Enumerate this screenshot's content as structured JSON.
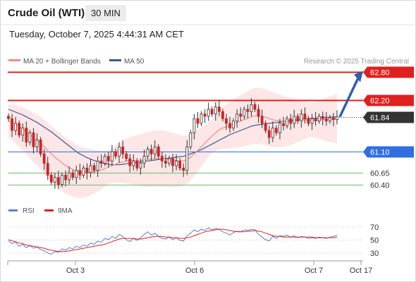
{
  "header": {
    "instrument": "Crude Oil (WTI)",
    "timeframe": "30 MIN",
    "datetime": "Tuesday, October 7, 2025 4:44:31 AM CET"
  },
  "legend": {
    "ma20_label": "MA 20 + Bollinger Bands",
    "ma50_label": "MA 50",
    "ma20_color": "#f28b82",
    "ma50_color": "#3a5a98",
    "credit": "Research © 2025 Trading Central"
  },
  "rsi_legend": {
    "rsi_label": "RSI",
    "ma9_label": "9MA",
    "rsi_color": "#5b7fd4",
    "ma9_color": "#e02020"
  },
  "chart_data": [
    {
      "type": "candlestick",
      "price_ylim": [
        60.2,
        62.9
      ],
      "x_axis_labels": [
        "Oct 3",
        "Oct 6",
        "Oct 7",
        "Oct 17"
      ],
      "price_levels": [
        {
          "value": "62.80",
          "role": "target",
          "color": "#e02020",
          "style": "solid"
        },
        {
          "value": "62.20",
          "role": "resistance",
          "color": "#e02020",
          "style": "solid"
        },
        {
          "value": "61.84",
          "role": "last price",
          "color": "#333333",
          "style": "dotted"
        },
        {
          "value": "61.10",
          "role": "pivot",
          "color": "#2f6fe0",
          "style": "solid"
        },
        {
          "value": "60.65",
          "role": "support",
          "color": "#6cbf6c",
          "style": "solid"
        },
        {
          "value": "60.40",
          "role": "support",
          "color": "#6cbf6c",
          "style": "solid"
        }
      ],
      "close_series": [
        61.8,
        61.55,
        61.7,
        61.45,
        61.6,
        61.3,
        61.5,
        61.2,
        61.35,
        61.05,
        60.85,
        60.6,
        60.45,
        60.55,
        60.4,
        60.6,
        60.5,
        60.65,
        60.55,
        60.7,
        60.6,
        60.75,
        60.65,
        60.8,
        60.7,
        60.9,
        60.85,
        61.0,
        60.9,
        61.1,
        61.0,
        61.2,
        61.05,
        60.95,
        60.8,
        60.9,
        60.75,
        60.85,
        61.0,
        61.15,
        61.05,
        61.2,
        61.0,
        60.9,
        60.85,
        60.95,
        60.8,
        60.9,
        60.75,
        60.7,
        61.2,
        61.5,
        61.8,
        61.7,
        61.9,
        61.85,
        62.0,
        61.9,
        62.05,
        61.95,
        61.8,
        61.7,
        61.6,
        61.75,
        61.9,
        61.85,
        62.0,
        61.95,
        62.1,
        62.0,
        61.85,
        61.7,
        61.55,
        61.4,
        61.6,
        61.5,
        61.7,
        61.65,
        61.8,
        61.7,
        61.85,
        61.75,
        61.9,
        61.8,
        61.7,
        61.8,
        61.75,
        61.85,
        61.8,
        61.75,
        61.82,
        61.78,
        61.84
      ],
      "ma20_series": [
        61.75,
        61.72,
        61.68,
        61.64,
        61.58,
        61.52,
        61.46,
        61.4,
        61.34,
        61.28,
        61.2,
        61.12,
        61.05,
        60.98,
        60.92,
        60.86,
        60.8,
        60.76,
        60.72,
        60.68,
        60.66,
        60.65,
        60.65,
        60.66,
        60.67,
        60.69,
        60.71,
        60.74,
        60.77,
        60.8,
        60.83,
        60.86,
        60.88,
        60.9,
        60.91,
        60.91,
        60.91,
        60.91,
        60.92,
        60.93,
        60.94,
        60.95,
        60.95,
        60.95,
        60.94,
        60.93,
        60.92,
        60.91,
        60.9,
        60.9,
        60.93,
        60.98,
        61.05,
        61.12,
        61.2,
        61.28,
        61.36,
        61.43,
        61.5,
        61.56,
        61.6,
        61.63,
        61.66,
        61.69,
        61.72,
        61.75,
        61.78,
        61.81,
        61.84,
        61.86,
        61.86,
        61.85,
        61.83,
        61.8,
        61.78,
        61.76,
        61.75,
        61.74,
        61.74,
        61.74,
        61.75,
        61.76,
        61.77,
        61.77,
        61.77,
        61.77,
        61.77,
        61.78,
        61.78,
        61.78,
        61.79,
        61.79,
        61.8
      ],
      "ma50_series": [
        62.0,
        61.97,
        61.94,
        61.91,
        61.88,
        61.84,
        61.8,
        61.76,
        61.72,
        61.67,
        61.62,
        61.57,
        61.52,
        61.46,
        61.4,
        61.34,
        61.28,
        61.22,
        61.16,
        61.1,
        61.05,
        61.01,
        60.97,
        60.94,
        60.91,
        60.88,
        60.86,
        60.84,
        60.83,
        60.82,
        60.82,
        60.82,
        60.83,
        60.84,
        60.85,
        60.86,
        60.87,
        60.88,
        60.89,
        60.9,
        60.91,
        60.92,
        60.93,
        60.94,
        60.95,
        60.96,
        60.97,
        60.98,
        60.99,
        61.0,
        61.02,
        61.05,
        61.08,
        61.11,
        61.14,
        61.18,
        61.22,
        61.26,
        61.3,
        61.34,
        61.38,
        61.42,
        61.46,
        61.49,
        61.52,
        61.55,
        61.58,
        61.61,
        61.64,
        61.66,
        61.67,
        61.68,
        61.69,
        61.7,
        61.71,
        61.72,
        61.73,
        61.74,
        61.75,
        61.76,
        61.77,
        61.78,
        61.79,
        61.8,
        61.8,
        61.81,
        61.81,
        61.82,
        61.82,
        61.83,
        61.83,
        61.84,
        61.84
      ]
    },
    {
      "type": "line",
      "name": "RSI",
      "rsi_ylim": [
        20,
        80
      ],
      "y_tick_labels": [
        "70",
        "50",
        "30"
      ],
      "rsi_series": [
        48,
        44,
        46,
        40,
        43,
        38,
        41,
        37,
        39,
        35,
        33,
        30,
        28,
        32,
        31,
        36,
        34,
        38,
        36,
        40,
        38,
        42,
        40,
        45,
        43,
        48,
        46,
        52,
        50,
        55,
        52,
        58,
        55,
        50,
        47,
        52,
        49,
        53,
        58,
        62,
        57,
        60,
        55,
        52,
        51,
        54,
        50,
        53,
        49,
        48,
        56,
        60,
        65,
        62,
        66,
        64,
        68,
        65,
        67,
        66,
        62,
        60,
        57,
        61,
        63,
        62,
        65,
        64,
        66,
        65,
        58,
        54,
        50,
        48,
        55,
        52,
        56,
        55,
        57,
        54,
        56,
        53,
        55,
        54,
        52,
        53,
        52,
        54,
        53,
        52,
        54,
        55,
        57
      ],
      "ma9_series": [
        50,
        48,
        47,
        45,
        44,
        42,
        41,
        40,
        39,
        38,
        37,
        35,
        34,
        33,
        32,
        32,
        32,
        33,
        34,
        35,
        36,
        37,
        38,
        39,
        40,
        41,
        42,
        43,
        45,
        47,
        49,
        51,
        52,
        52,
        52,
        52,
        51,
        51,
        52,
        53,
        54,
        55,
        55,
        55,
        54,
        54,
        53,
        53,
        52,
        52,
        53,
        54,
        56,
        58,
        60,
        62,
        63,
        64,
        65,
        66,
        66,
        65,
        64,
        63,
        62,
        62,
        62,
        63,
        63,
        64,
        63,
        62,
        60,
        58,
        56,
        55,
        55,
        54,
        54,
        54,
        54,
        54,
        54,
        54,
        54,
        54,
        53,
        53,
        53,
        53,
        53,
        53,
        54
      ]
    }
  ]
}
